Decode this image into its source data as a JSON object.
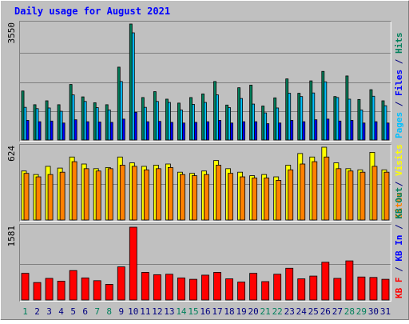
{
  "chart_data": {
    "type": "bar",
    "title": "Daily usage for August 2021",
    "days": [
      "1",
      "2",
      "3",
      "4",
      "5",
      "6",
      "7",
      "8",
      "9",
      "10",
      "11",
      "12",
      "13",
      "14",
      "15",
      "16",
      "17",
      "18",
      "19",
      "20",
      "21",
      "22",
      "23",
      "24",
      "25",
      "26",
      "27",
      "28",
      "29",
      "30",
      "31"
    ],
    "weekend_days": [
      "1",
      "7",
      "8",
      "14",
      "15",
      "21",
      "22",
      "28",
      "29"
    ],
    "panels": [
      {
        "id": "hits",
        "max_label": "3550",
        "ymax": 3550,
        "legend": [
          {
            "text": "Pages",
            "color": "#00c0ff"
          },
          {
            "text": " / ",
            "color": "#000080"
          },
          {
            "text": "Files",
            "color": "#0000ff"
          },
          {
            "text": " / ",
            "color": "#000080"
          },
          {
            "text": "Hits",
            "color": "#00805c"
          }
        ],
        "series": [
          {
            "name": "Hits",
            "color": "#00805c",
            "values": [
              1500,
              1080,
              1200,
              1080,
              1700,
              1320,
              1140,
              1080,
              2230,
              3550,
              1300,
              1480,
              1250,
              1130,
              1300,
              1410,
              1790,
              1070,
              1600,
              1680,
              1040,
              1290,
              1870,
              1430,
              1810,
              2100,
              1330,
              1960,
              1240,
              1540,
              1200
            ]
          },
          {
            "name": "Files",
            "color": "#00c0ff",
            "values": [
              1000,
              960,
              980,
              880,
              1380,
              1180,
              990,
              920,
              1790,
              3280,
              1000,
              1180,
              1150,
              920,
              1090,
              1150,
              1380,
              990,
              1270,
              1100,
              830,
              980,
              1430,
              1330,
              1440,
              1780,
              1300,
              1250,
              920,
              1340,
              1050
            ]
          },
          {
            "name": "Pages",
            "color": "#0000ff",
            "values": [
              600,
              560,
              580,
              520,
              620,
              560,
              550,
              540,
              640,
              850,
              560,
              570,
              540,
              520,
              540,
              560,
              600,
              520,
              560,
              560,
              500,
              520,
              600,
              560,
              620,
              640,
              580,
              600,
              520,
              560,
              520
            ]
          }
        ]
      },
      {
        "id": "visits",
        "max_label": "624",
        "ymax": 624,
        "legend": [
          {
            "text": "Sites",
            "color": "#ff8000"
          },
          {
            "text": " / ",
            "color": "#000080"
          },
          {
            "text": "Visits",
            "color": "#ffff00"
          }
        ],
        "series": [
          {
            "name": "Visits",
            "color": "#ffff00",
            "values": [
              420,
              390,
              460,
              445,
              540,
              480,
              440,
              450,
              540,
              490,
              460,
              470,
              480,
              410,
              400,
              420,
              510,
              440,
              410,
              380,
              390,
              370,
              470,
              570,
              540,
              624,
              490,
              440,
              430,
              580,
              430
            ]
          },
          {
            "name": "Sites",
            "color": "#ff8000",
            "values": [
              400,
              370,
              390,
              410,
              500,
              440,
              420,
              440,
              470,
              460,
              430,
              440,
              450,
              390,
              380,
              390,
              470,
              400,
              370,
              360,
              360,
              340,
              430,
              480,
              500,
              540,
              440,
              420,
              410,
              460,
              410
            ]
          }
        ]
      },
      {
        "id": "kbytes",
        "max_label": "1581",
        "ymax": 1581,
        "legend": [
          {
            "text": "KB F",
            "color": "#ff0000"
          },
          {
            "text": " / ",
            "color": "#000080"
          },
          {
            "text": "KB In",
            "color": "#0000ff"
          },
          {
            "text": " / ",
            "color": "#000080"
          },
          {
            "text": "KB Out",
            "color": "#00805c"
          }
        ],
        "series": [
          {
            "name": "KB F",
            "color": "#ff0000",
            "values": [
              580,
              380,
              470,
              410,
              640,
              480,
              420,
              340,
              720,
              1581,
              600,
              550,
              560,
              480,
              450,
              540,
              600,
              460,
              390,
              580,
              400,
              560,
              690,
              460,
              520,
              820,
              470,
              850,
              500,
              490,
              450
            ]
          }
        ]
      }
    ]
  }
}
